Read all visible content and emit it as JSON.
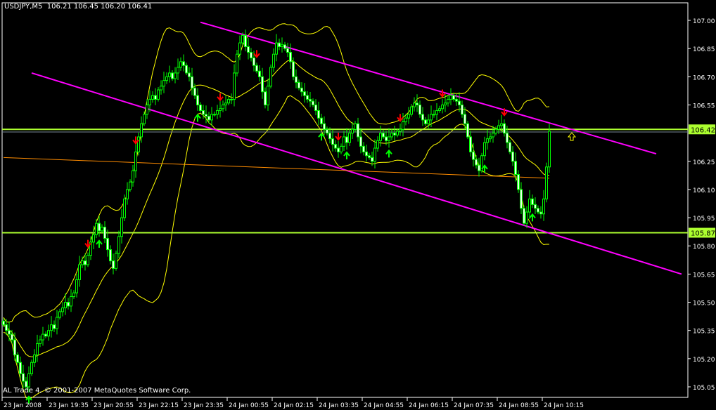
{
  "header": {
    "symbol": "USDJPY,M5",
    "ohlc": "106.21 106.45 106.20 106.41"
  },
  "footer": {
    "copyright": "AL Trade 4, © 2001-2007 MetaQuotes Software Corp."
  },
  "colors": {
    "background": "#000000",
    "candle": "#00ff00",
    "bands": "#ffff00",
    "channel": "#ff00ff",
    "level": "#adff2f",
    "trend": "#ff8c00",
    "sell_arrow": "#ff0000",
    "buy_arrow": "#00ff00",
    "axis": "#ffffff"
  },
  "chart_data": {
    "type": "candlestick",
    "symbol": "USDJPY",
    "timeframe": "M5",
    "ylim": [
      105.0,
      107.1
    ],
    "y_ticks": [
      107.0,
      106.85,
      106.7,
      106.55,
      106.25,
      106.1,
      105.95,
      105.8,
      105.65,
      105.5,
      105.35,
      105.2,
      105.05
    ],
    "x_tick_every_bars": 16,
    "x_ticks": [
      "23 Jan 2008",
      "23 Jan 19:35",
      "23 Jan 20:55",
      "23 Jan 22:15",
      "23 Jan 23:35",
      "24 Jan 00:55",
      "24 Jan 02:15",
      "24 Jan 03:35",
      "24 Jan 04:55",
      "24 Jan 06:15",
      "24 Jan 07:35",
      "24 Jan 08:55",
      "24 Jan 10:15"
    ],
    "close": [
      105.38,
      105.35,
      105.33,
      105.3,
      105.22,
      105.18,
      105.12,
      105.08,
      105.05,
      105.12,
      105.18,
      105.22,
      105.28,
      105.3,
      105.33,
      105.32,
      105.35,
      105.38,
      105.36,
      105.42,
      105.45,
      105.47,
      105.5,
      105.48,
      105.53,
      105.55,
      105.62,
      105.7,
      105.72,
      105.7,
      105.75,
      105.82,
      105.86,
      105.92,
      105.88,
      105.9,
      105.84,
      105.78,
      105.72,
      105.68,
      105.76,
      105.85,
      105.95,
      106.05,
      106.1,
      106.14,
      106.2,
      106.3,
      106.38,
      106.45,
      106.5,
      106.55,
      106.58,
      106.6,
      106.58,
      106.63,
      106.65,
      106.68,
      106.7,
      106.72,
      106.69,
      106.72,
      106.75,
      106.78,
      106.76,
      106.72,
      106.7,
      106.64,
      106.6,
      106.55,
      106.52,
      106.5,
      106.49,
      106.47,
      106.5,
      106.5,
      106.52,
      106.53,
      106.55,
      106.56,
      106.58,
      106.58,
      106.72,
      106.82,
      106.88,
      106.92,
      106.86,
      106.83,
      106.8,
      106.76,
      106.73,
      106.7,
      106.62,
      106.55,
      106.65,
      106.75,
      106.82,
      106.88,
      106.86,
      106.87,
      106.85,
      106.83,
      106.78,
      106.7,
      106.67,
      106.64,
      106.62,
      106.6,
      106.58,
      106.57,
      106.55,
      106.52,
      106.48,
      106.45,
      106.42,
      106.4,
      106.37,
      106.34,
      106.32,
      106.3,
      106.33,
      106.38,
      106.35,
      106.4,
      106.42,
      106.45,
      106.38,
      106.33,
      106.3,
      106.28,
      106.27,
      106.25,
      106.32,
      106.36,
      106.4,
      106.38,
      106.36,
      106.38,
      106.4,
      106.39,
      106.41,
      106.42,
      106.46,
      106.48,
      106.5,
      106.54,
      106.56,
      106.55,
      106.5,
      106.47,
      106.45,
      106.47,
      106.5,
      106.5,
      106.52,
      106.53,
      106.55,
      106.56,
      106.58,
      106.6,
      106.58,
      106.57,
      106.55,
      106.5,
      106.45,
      106.38,
      106.3,
      106.26,
      106.23,
      106.2,
      106.28,
      106.35,
      106.37,
      106.38,
      106.4,
      106.42,
      106.44,
      106.45,
      106.4,
      106.35,
      106.3,
      106.25,
      106.18,
      106.1,
      106.0,
      105.92,
      105.98,
      106.05,
      106.02,
      106.0,
      105.98,
      105.97,
      106.05,
      106.22,
      106.41
    ],
    "horizontal_levels": [
      {
        "price": 106.42,
        "label": "106.42"
      },
      {
        "price": 105.87,
        "label": "105.87"
      }
    ],
    "bid_line": 106.41,
    "channel_lines": [
      {
        "from": [
          70,
          106.99
        ],
        "to": [
          232,
          106.29
        ]
      },
      {
        "from": [
          10,
          106.72
        ],
        "to": [
          241,
          105.65
        ]
      }
    ],
    "trend_line": {
      "from": [
        0,
        106.27
      ],
      "to": [
        194,
        106.16
      ]
    },
    "sell_arrows": [
      30,
      47,
      77,
      90,
      119,
      141,
      156,
      178
    ],
    "buy_arrows": [
      9,
      34,
      69,
      113,
      122,
      137,
      171,
      188
    ],
    "hollow_up_arrow": {
      "bar": 202,
      "price": 106.38
    }
  }
}
